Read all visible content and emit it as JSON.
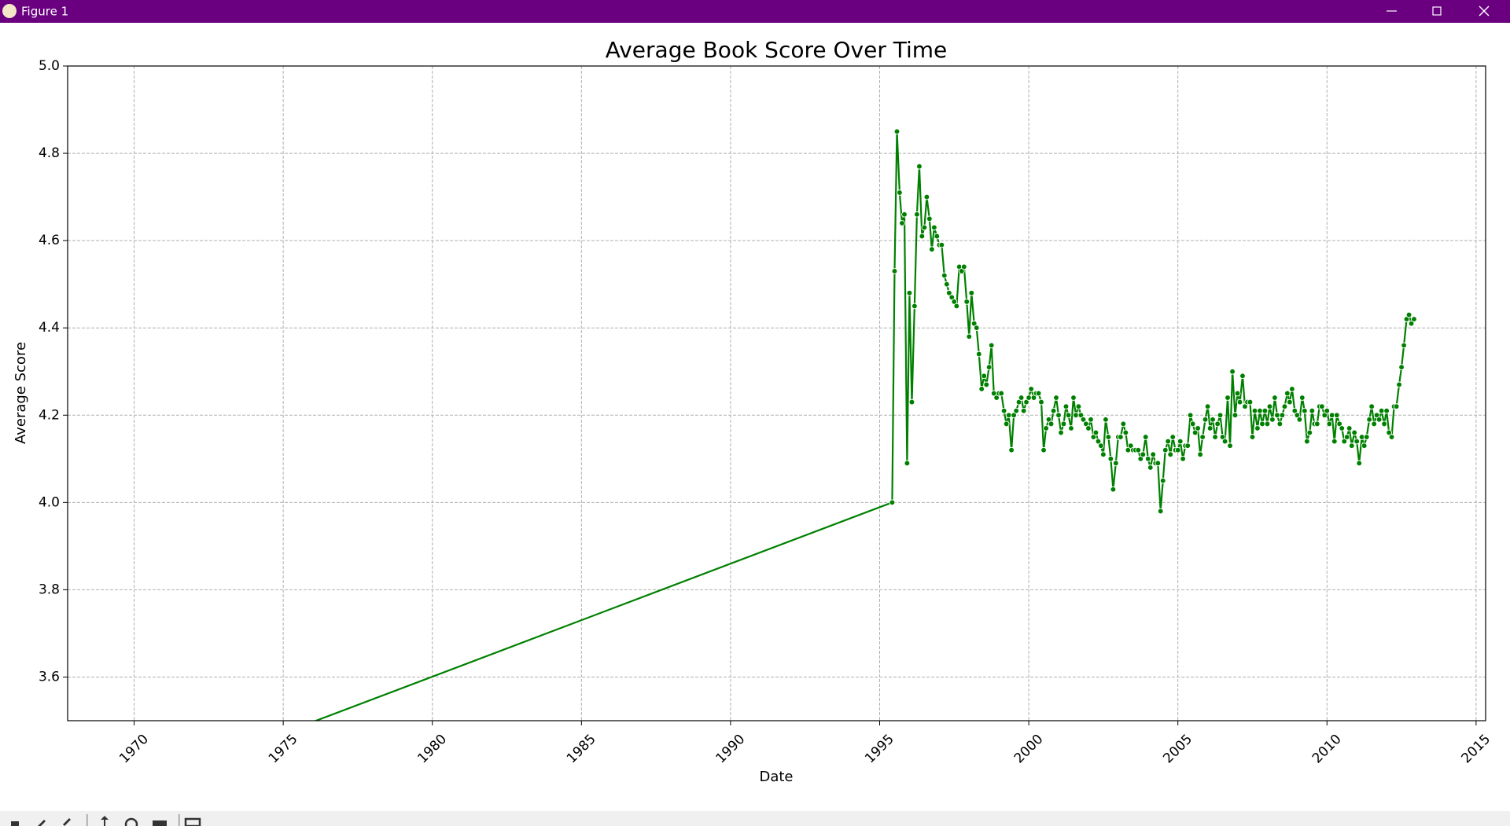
{
  "window": {
    "title": "Figure 1"
  },
  "chart_data": {
    "type": "line",
    "title": "Average Book Score Over Time",
    "x_label": "Date",
    "y_label": "Average Score",
    "color": "#008000",
    "marker": true,
    "grid": true,
    "xlim": [
      1967.77,
      2015.32
    ],
    "ylim": [
      3.5,
      5.0
    ],
    "xticks": [
      1970,
      1975,
      1980,
      1985,
      1990,
      1995,
      2000,
      2005,
      2010,
      2015
    ],
    "yticks": [
      3.6,
      3.8,
      {
        "value": 4.0,
        "label": "4.0"
      },
      4.2,
      4.4,
      4.6,
      4.8,
      {
        "value": 5.0,
        "label": "5.0"
      }
    ],
    "x": [
      1969.92,
      1995.42,
      1995.5,
      1995.58,
      1995.67,
      1995.75,
      1995.83,
      1995.92,
      1996.0,
      1996.08,
      1996.17,
      1996.25,
      1996.33,
      1996.42,
      1996.5,
      1996.58,
      1996.67,
      1996.75,
      1996.83,
      1996.92,
      1997.0,
      1997.08,
      1997.17,
      1997.25,
      1997.33,
      1997.42,
      1997.5,
      1997.58,
      1997.67,
      1997.75,
      1997.83,
      1997.92,
      1998.0,
      1998.08,
      1998.17,
      1998.25,
      1998.33,
      1998.42,
      1998.5,
      1998.58,
      1998.67,
      1998.75,
      1998.83,
      1998.92,
      1999.0,
      1999.08,
      1999.17,
      1999.25,
      1999.33,
      1999.42,
      1999.5,
      1999.58,
      1999.67,
      1999.75,
      1999.83,
      1999.92,
      2000.0,
      2000.08,
      2000.17,
      2000.25,
      2000.33,
      2000.42,
      2000.5,
      2000.58,
      2000.67,
      2000.75,
      2000.83,
      2000.92,
      2001.0,
      2001.08,
      2001.17,
      2001.25,
      2001.33,
      2001.42,
      2001.5,
      2001.58,
      2001.67,
      2001.75,
      2001.83,
      2001.92,
      2002.0,
      2002.08,
      2002.17,
      2002.25,
      2002.33,
      2002.42,
      2002.5,
      2002.58,
      2002.67,
      2002.75,
      2002.83,
      2002.92,
      2003.0,
      2003.08,
      2003.17,
      2003.25,
      2003.33,
      2003.42,
      2003.5,
      2003.58,
      2003.67,
      2003.75,
      2003.83,
      2003.92,
      2004.0,
      2004.08,
      2004.17,
      2004.25,
      2004.33,
      2004.42,
      2004.5,
      2004.58,
      2004.67,
      2004.75,
      2004.83,
      2004.92,
      2005.0,
      2005.08,
      2005.17,
      2005.25,
      2005.33,
      2005.42,
      2005.5,
      2005.58,
      2005.67,
      2005.75,
      2005.83,
      2005.92,
      2006.0,
      2006.08,
      2006.17,
      2006.25,
      2006.33,
      2006.42,
      2006.5,
      2006.58,
      2006.67,
      2006.75,
      2006.83,
      2006.92,
      2007.0,
      2007.08,
      2007.17,
      2007.25,
      2007.33,
      2007.42,
      2007.5,
      2007.58,
      2007.67,
      2007.75,
      2007.83,
      2007.92,
      2008.0,
      2008.08,
      2008.17,
      2008.25,
      2008.33,
      2008.42,
      2008.5,
      2008.58,
      2008.67,
      2008.75,
      2008.83,
      2008.92,
      2009.0,
      2009.08,
      2009.17,
      2009.25,
      2009.33,
      2009.42,
      2009.5,
      2009.58,
      2009.67,
      2009.75,
      2009.83,
      2009.92,
      2010.0,
      2010.08,
      2010.17,
      2010.25,
      2010.33,
      2010.42,
      2010.5,
      2010.58,
      2010.67,
      2010.75,
      2010.83,
      2010.92,
      2011.0,
      2011.08,
      2011.17,
      2011.25,
      2011.33,
      2011.42,
      2011.5,
      2011.58,
      2011.67,
      2011.75,
      2011.83,
      2011.92,
      2012.0,
      2012.08,
      2012.17,
      2012.25,
      2012.33,
      2012.42,
      2012.5,
      2012.58,
      2012.67,
      2012.75,
      2012.83,
      2012.92
    ],
    "values": [
      3.34,
      4.0,
      4.53,
      4.85,
      4.71,
      4.64,
      4.66,
      4.09,
      4.48,
      4.23,
      4.45,
      4.66,
      4.77,
      4.61,
      4.63,
      4.7,
      4.65,
      4.58,
      4.63,
      4.61,
      4.59,
      4.59,
      4.52,
      4.5,
      4.48,
      4.47,
      4.46,
      4.45,
      4.54,
      4.53,
      4.54,
      4.46,
      4.38,
      4.48,
      4.41,
      4.4,
      4.34,
      4.26,
      4.29,
      4.27,
      4.31,
      4.36,
      4.25,
      4.24,
      4.25,
      4.25,
      4.21,
      4.18,
      4.2,
      4.12,
      4.2,
      4.21,
      4.23,
      4.24,
      4.21,
      4.23,
      4.24,
      4.26,
      4.24,
      4.25,
      4.25,
      4.23,
      4.12,
      4.17,
      4.19,
      4.18,
      4.21,
      4.24,
      4.2,
      4.16,
      4.18,
      4.22,
      4.2,
      4.17,
      4.24,
      4.2,
      4.22,
      4.2,
      4.19,
      4.18,
      4.17,
      4.19,
      4.15,
      4.16,
      4.14,
      4.13,
      4.11,
      4.19,
      4.15,
      4.1,
      4.03,
      4.09,
      4.15,
      4.15,
      4.18,
      4.16,
      4.12,
      4.13,
      4.12,
      4.12,
      4.12,
      4.1,
      4.11,
      4.15,
      4.1,
      4.08,
      4.11,
      4.09,
      4.09,
      3.98,
      4.05,
      4.12,
      4.14,
      4.11,
      4.15,
      4.12,
      4.12,
      4.14,
      4.1,
      4.13,
      4.13,
      4.2,
      4.18,
      4.16,
      4.17,
      4.11,
      4.15,
      4.19,
      4.22,
      4.17,
      4.19,
      4.15,
      4.18,
      4.2,
      4.15,
      4.14,
      4.24,
      4.13,
      4.3,
      4.2,
      4.25,
      4.23,
      4.29,
      4.22,
      4.23,
      4.23,
      4.15,
      4.21,
      4.17,
      4.21,
      4.18,
      4.21,
      4.18,
      4.22,
      4.19,
      4.24,
      4.2,
      4.18,
      4.2,
      4.22,
      4.25,
      4.23,
      4.26,
      4.21,
      4.2,
      4.19,
      4.24,
      4.21,
      4.14,
      4.16,
      4.21,
      4.18,
      4.18,
      4.22,
      4.22,
      4.2,
      4.21,
      4.18,
      4.2,
      4.14,
      4.2,
      4.18,
      4.17,
      4.14,
      4.15,
      4.17,
      4.13,
      4.16,
      4.14,
      4.09,
      4.15,
      4.13,
      4.15,
      4.19,
      4.22,
      4.18,
      4.2,
      4.19,
      4.21,
      4.18,
      4.21,
      4.16,
      4.15,
      4.22,
      4.22,
      4.27,
      4.31,
      4.36,
      4.42,
      4.43,
      4.41,
      4.42
    ]
  }
}
